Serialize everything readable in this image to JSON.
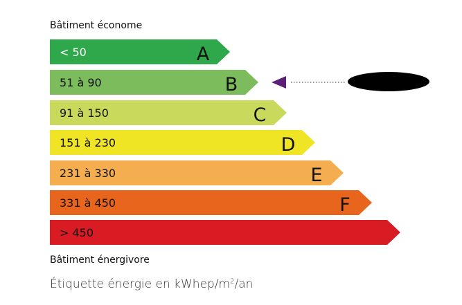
{
  "top_label": "Bâtiment économe",
  "bottom_label": "Bâtiment énergivore",
  "legend": {
    "prefix": "Étiquette énergie en kWhep/m",
    "sup": "2",
    "suffix": "/an"
  },
  "classes": [
    {
      "range": "< 50",
      "letter": "A",
      "color": "#2ea84a",
      "text_color": "#ffffff"
    },
    {
      "range": "51 à 90",
      "letter": "B",
      "color": "#7dbc5d",
      "text_color": "#111111"
    },
    {
      "range": "91 à 150",
      "letter": "C",
      "color": "#c9d95c",
      "text_color": "#111111"
    },
    {
      "range": "151 à 230",
      "letter": "D",
      "color": "#f0e524",
      "text_color": "#111111"
    },
    {
      "range": "231 à 330",
      "letter": "E",
      "color": "#f4ad4f",
      "text_color": "#111111"
    },
    {
      "range": "331 à 450",
      "letter": "F",
      "color": "#e8651d",
      "text_color": "#111111"
    },
    {
      "range": "> 450",
      "letter": "",
      "color": "#d91b23",
      "text_color": "#111111"
    }
  ],
  "indicator": {
    "class": "B",
    "color": "#5b1f78",
    "value_redacted": true
  }
}
